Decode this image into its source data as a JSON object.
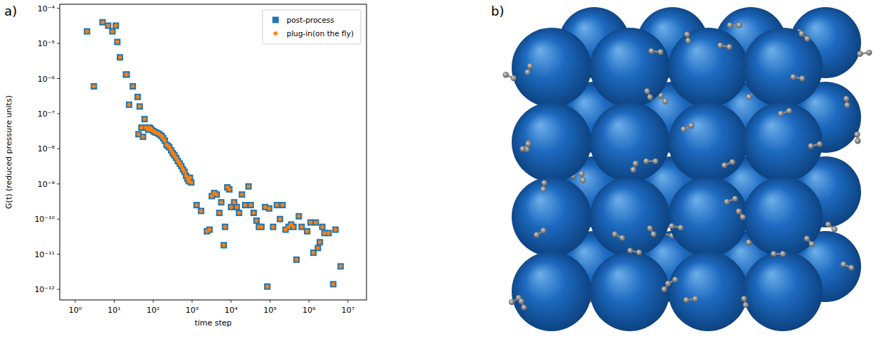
{
  "chart_data": {
    "type": "scatter",
    "x_label": "time step",
    "y_label": "G(t) (reduced pressure units)",
    "log": true,
    "legend": "upper right",
    "grid": false,
    "xlim": [
      0.4,
      30000000
    ],
    "ylim": [
      5e-13,
      0.00013
    ],
    "xticks": [
      {
        "value": 1,
        "label": "10⁰"
      },
      {
        "value": 10,
        "label": "10¹"
      },
      {
        "value": 100,
        "label": "10²"
      },
      {
        "value": 1000,
        "label": "10³"
      },
      {
        "value": 10000,
        "label": "10⁴"
      },
      {
        "value": 100000,
        "label": "10⁵"
      },
      {
        "value": 1000000,
        "label": "10⁶"
      },
      {
        "value": 10000000,
        "label": "10⁷"
      }
    ],
    "yticks": [
      {
        "value": 1e-12,
        "label": "10⁻¹²"
      },
      {
        "value": 1e-11,
        "label": "10⁻¹¹"
      },
      {
        "value": 1e-10,
        "label": "10⁻¹⁰"
      },
      {
        "value": 1e-09,
        "label": "10⁻⁹"
      },
      {
        "value": 1e-08,
        "label": "10⁻⁸"
      },
      {
        "value": 1e-07,
        "label": "10⁻⁷"
      },
      {
        "value": 1e-06,
        "label": "10⁻⁶"
      },
      {
        "value": 1e-05,
        "label": "10⁻⁵"
      },
      {
        "value": 0.0001,
        "label": "10⁻⁴"
      }
    ],
    "x": [
      2,
      3,
      5,
      7,
      9,
      11,
      12,
      14,
      20,
      21,
      24,
      30,
      40,
      42,
      45,
      50,
      55,
      60,
      65,
      75,
      80,
      85,
      90,
      100,
      110,
      120,
      135,
      150,
      165,
      180,
      200,
      220,
      240,
      260,
      290,
      320,
      350,
      390,
      430,
      480,
      530,
      580,
      640,
      700,
      760,
      820,
      880,
      950,
      1300,
      1700,
      2400,
      2800,
      3200,
      3700,
      4300,
      5000,
      5600,
      6500,
      7000,
      8000,
      9000,
      10000,
      12000,
      14000,
      16000,
      19000,
      23000,
      28000,
      32000,
      38000,
      45000,
      52000,
      60000,
      75000,
      85000,
      95000,
      120000,
      150000,
      180000,
      210000,
      250000,
      300000,
      350000,
      400000,
      480000,
      550000,
      650000,
      900000,
      1100000,
      1300000,
      1500000,
      1700000,
      1900000,
      2200000,
      2500000,
      3200000,
      4200000,
      4800000,
      6500000
    ],
    "series": [
      {
        "name": "post-process",
        "color": "#1f77b4",
        "marker": "square",
        "values": [
          2.2e-05,
          6e-07,
          4e-05,
          3.2e-05,
          2.2e-05,
          3.2e-05,
          1.1e-05,
          4e-06,
          1.3e-06,
          1.3e-06,
          1.8e-07,
          6e-07,
          3e-07,
          2.6e-08,
          1.6e-07,
          4e-08,
          2.2e-08,
          7e-08,
          4e-08,
          3.5e-08,
          4e-08,
          3.8e-08,
          3.5e-08,
          3.2e-08,
          3e-08,
          2.9e-08,
          2.7e-08,
          2.5e-08,
          2.3e-08,
          2e-08,
          1.7e-08,
          1.3e-08,
          1.2e-08,
          1.1e-08,
          9e-09,
          7.5e-09,
          6.5e-09,
          5.5e-09,
          4.5e-09,
          3.8e-09,
          3.2e-09,
          2.6e-09,
          2.2e-09,
          1.7e-09,
          1.4e-09,
          1.2e-09,
          1.5e-09,
          1.1e-09,
          2.5e-10,
          1.7e-10,
          4.5e-11,
          5e-11,
          4.5e-10,
          5.5e-10,
          5e-10,
          1.5e-10,
          3e-10,
          1.8e-11,
          6e-11,
          8e-10,
          7e-10,
          2.2e-10,
          3e-10,
          2.2e-10,
          1.5e-10,
          5e-10,
          2.5e-10,
          8.5e-10,
          2.5e-10,
          1.5e-10,
          9e-11,
          6e-11,
          6e-11,
          2.2e-10,
          1.2e-12,
          2e-10,
          6e-11,
          2.5e-10,
          1e-10,
          2.5e-10,
          5e-11,
          6e-11,
          7e-11,
          6e-11,
          7e-12,
          1.2e-10,
          6e-11,
          4.5e-11,
          8e-11,
          1.1e-11,
          8e-11,
          1.5e-11,
          2.2e-11,
          6e-11,
          4e-11,
          4e-11,
          1.4e-12,
          5e-11,
          4.5e-12
        ]
      },
      {
        "name": "plug-in(on the fly)",
        "color": "#ff7f0e",
        "marker": "circle",
        "values": [
          2.2e-05,
          6e-07,
          4e-05,
          3.2e-05,
          2.2e-05,
          3.2e-05,
          1.1e-05,
          4e-06,
          1.3e-06,
          1.3e-06,
          1.8e-07,
          6e-07,
          3e-07,
          2.6e-08,
          1.6e-07,
          4e-08,
          2.2e-08,
          7e-08,
          4e-08,
          3.5e-08,
          4e-08,
          3.8e-08,
          3.5e-08,
          3.2e-08,
          3e-08,
          2.9e-08,
          2.7e-08,
          2.5e-08,
          2.3e-08,
          2e-08,
          1.7e-08,
          1.3e-08,
          1.2e-08,
          1.1e-08,
          9e-09,
          7.5e-09,
          6.5e-09,
          5.5e-09,
          4.5e-09,
          3.8e-09,
          3.2e-09,
          2.6e-09,
          2.2e-09,
          1.7e-09,
          1.4e-09,
          1.2e-09,
          1.5e-09,
          1.1e-09,
          2.5e-10,
          1.7e-10,
          4.5e-11,
          5e-11,
          4.5e-10,
          5.5e-10,
          5e-10,
          1.5e-10,
          3e-10,
          1.8e-11,
          6e-11,
          8e-10,
          7e-10,
          2.2e-10,
          3e-10,
          2.2e-10,
          1.5e-10,
          5e-10,
          2.5e-10,
          8.5e-10,
          2.5e-10,
          1.5e-10,
          9e-11,
          6e-11,
          6e-11,
          2.2e-10,
          1.2e-12,
          2e-10,
          6e-11,
          2.5e-10,
          1e-10,
          2.5e-10,
          5e-11,
          6e-11,
          7e-11,
          6e-11,
          7e-12,
          1.2e-10,
          6e-11,
          4.5e-11,
          8e-11,
          1.1e-11,
          8e-11,
          1.5e-11,
          2.2e-11,
          6e-11,
          4e-11,
          4e-11,
          1.4e-12,
          5e-11,
          4.5e-12
        ]
      }
    ]
  },
  "panel_labels": [
    "a)",
    "b)"
  ]
}
